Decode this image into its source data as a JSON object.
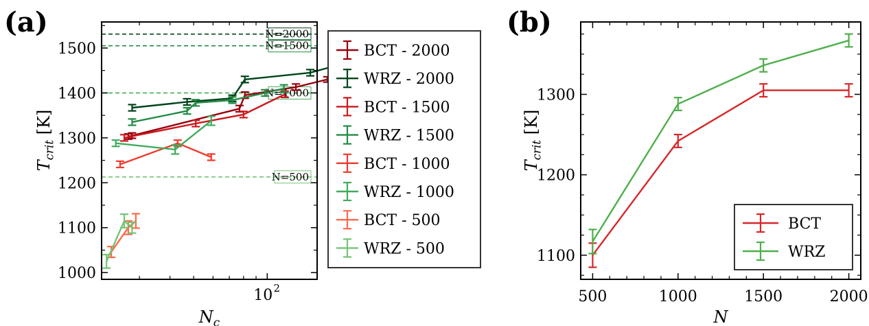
{
  "chart_data": [
    {
      "panel_label": "(a)",
      "type": "line",
      "xscale": "log",
      "xlabel_main": "N",
      "xlabel_sub": "c",
      "ylabel_main": "T",
      "ylabel_sub": "crit",
      "ylabel_unit": "[K]",
      "xlim": [
        21,
        160
      ],
      "ylim": [
        985,
        1558
      ],
      "yticks": [
        1000,
        1100,
        1200,
        1300,
        1400,
        1500
      ],
      "xtick_labels": [
        {
          "value": 100,
          "base": "10",
          "exp": "2"
        }
      ],
      "grid": false,
      "legend": "outside-right",
      "reference_lines": [
        {
          "label": "N=2000",
          "y": 1531,
          "color": "#00441b"
        },
        {
          "label": "N=1500",
          "y": 1505,
          "color": "#238b45"
        },
        {
          "label": "N=1000",
          "y": 1400,
          "color": "#41ab5d"
        },
        {
          "label": "N=500",
          "y": 1213,
          "color": "#74c476"
        }
      ],
      "series": [
        {
          "name": "BCT - 2000",
          "color": "#99000d",
          "x": [
            27,
            28,
            77,
            81,
            131,
            176
          ],
          "y": [
            1303,
            1305,
            1365,
            1395,
            1413,
            1430
          ],
          "err": [
            6,
            6,
            7,
            7,
            7,
            6
          ]
        },
        {
          "name": "WRZ - 2000",
          "color": "#00441b",
          "x": [
            28,
            47,
            72,
            81,
            150,
            189
          ],
          "y": [
            1367,
            1380,
            1388,
            1430,
            1445,
            1460
          ],
          "err": [
            7,
            7,
            7,
            7,
            7,
            7
          ]
        },
        {
          "name": "BCT - 1500",
          "color": "#cb181d",
          "x": [
            26,
            51,
            80,
            118
          ],
          "y": [
            1300,
            1332,
            1352,
            1397
          ],
          "err": [
            7,
            7,
            7,
            7
          ]
        },
        {
          "name": "WRZ - 1500",
          "color": "#238b45",
          "x": [
            28,
            47,
            51,
            72,
            98,
            117
          ],
          "y": [
            1335,
            1360,
            1378,
            1384,
            1400,
            1410
          ],
          "err": [
            7,
            7,
            7,
            7,
            7,
            8
          ]
        },
        {
          "name": "BCT - 1000",
          "color": "#ef3b2c",
          "x": [
            25,
            43,
            59
          ],
          "y": [
            1241,
            1288,
            1257
          ],
          "err": [
            7,
            7,
            7
          ]
        },
        {
          "name": "WRZ - 1000",
          "color": "#41ab5d",
          "x": [
            24,
            42,
            59
          ],
          "y": [
            1288,
            1274,
            1338
          ],
          "err": [
            7,
            10,
            10
          ]
        },
        {
          "name": "BCT - 500",
          "color": "#fb6a4a",
          "x": [
            23,
            27,
            29
          ],
          "y": [
            1046,
            1100,
            1115
          ],
          "err": [
            12,
            15,
            16
          ]
        },
        {
          "name": "WRZ - 500",
          "color": "#74c476",
          "x": [
            22,
            26,
            28
          ],
          "y": [
            1025,
            1115,
            1100
          ],
          "err": [
            15,
            15,
            12
          ]
        }
      ]
    },
    {
      "panel_label": "(b)",
      "type": "line",
      "xscale": "linear",
      "xlabel_main": "N",
      "ylabel_main": "T",
      "ylabel_sub": "crit",
      "ylabel_unit": "[K]",
      "xlim": [
        430,
        2070
      ],
      "ylim": [
        1070,
        1390
      ],
      "xticks": [
        500,
        1000,
        1500,
        2000
      ],
      "yticks": [
        1100,
        1200,
        1300
      ],
      "grid": false,
      "legend": "bottom-right",
      "series": [
        {
          "name": "BCT",
          "color": "#d62728",
          "x": [
            500,
            1000,
            1500,
            2000
          ],
          "y": [
            1100,
            1242,
            1305,
            1305
          ],
          "err": [
            15,
            8,
            8,
            8
          ]
        },
        {
          "name": "WRZ",
          "color": "#4daf4a",
          "x": [
            500,
            1000,
            1500,
            2000
          ],
          "y": [
            1117,
            1288,
            1336,
            1367
          ],
          "err": [
            15,
            8,
            8,
            8
          ]
        }
      ]
    }
  ]
}
